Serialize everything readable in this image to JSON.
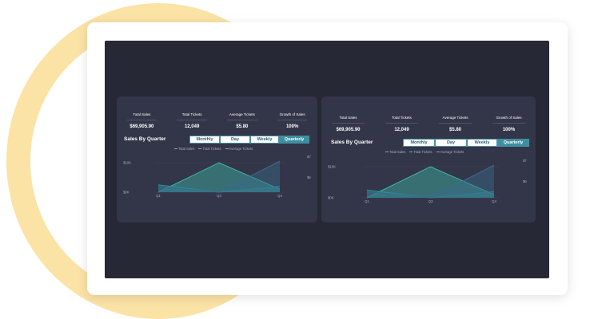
{
  "dashboards": [
    {
      "kpis": [
        {
          "label": "Total Sales",
          "value": "$69,905.90"
        },
        {
          "label": "Total Tickets",
          "value": "12,049"
        },
        {
          "label": "Average Tickets",
          "value": "$5.80"
        },
        {
          "label": "Growth of Sales",
          "value": "100%"
        }
      ],
      "chart_title": "Sales By Quarter",
      "tabs": [
        "Monthly",
        "Day",
        "Weekly",
        "Quarterly"
      ],
      "active_tab": "Quarterly",
      "legend": [
        "Total Sales",
        "Total Tickets",
        "Average Tickets"
      ],
      "left_ticks": [
        "$10K",
        "$0K"
      ],
      "right_ticks": [
        "$7",
        "$6"
      ],
      "x_ticks": [
        "Q1",
        "Q3",
        "Q4"
      ]
    },
    {
      "kpis": [
        {
          "label": "Total Sales",
          "value": "$69,905.90"
        },
        {
          "label": "Total Tickets",
          "value": "12,049"
        },
        {
          "label": "Average Tickets",
          "value": "$5.80"
        },
        {
          "label": "Growth of Sales",
          "value": "100%"
        }
      ],
      "chart_title": "Sales By Quarter",
      "tabs": [
        "Monthly",
        "Day",
        "Weekly",
        "Quarterly"
      ],
      "active_tab": "Quarterly",
      "legend": [
        "Total Sales",
        "Total Tickets",
        "Average Tickets"
      ],
      "left_ticks": [
        "$10K",
        "$0K"
      ],
      "right_ticks": [
        "$7",
        "$6"
      ],
      "x_ticks": [
        "Q1",
        "Q3",
        "Q4"
      ]
    }
  ],
  "chart_data": [
    {
      "type": "area",
      "title": "Sales By Quarter",
      "categories": [
        "Q1",
        "Q3",
        "Q4"
      ],
      "series": [
        {
          "name": "Total Sales",
          "axis": "left",
          "values": [
            0,
            10000,
            1000
          ],
          "color": "#3fb6a8"
        },
        {
          "name": "Total Tickets",
          "axis": "left",
          "values": [
            2500,
            0,
            2000
          ],
          "color": "#2e8f95"
        },
        {
          "name": "Average Tickets",
          "axis": "right",
          "values": [
            5.8,
            5.5,
            7.1
          ],
          "color": "#3a6a8c"
        }
      ],
      "ylim_left": [
        0,
        10000
      ],
      "ylim_right": [
        5.5,
        7.0
      ]
    },
    {
      "type": "area",
      "title": "Sales By Quarter",
      "categories": [
        "Q1",
        "Q3",
        "Q4"
      ],
      "series": [
        {
          "name": "Total Sales",
          "axis": "left",
          "values": [
            0,
            10000,
            1000
          ],
          "color": "#3fb6a8"
        },
        {
          "name": "Total Tickets",
          "axis": "left",
          "values": [
            2500,
            0,
            2000
          ],
          "color": "#2e8f95"
        },
        {
          "name": "Average Tickets",
          "axis": "right",
          "values": [
            5.8,
            5.5,
            7.1
          ],
          "color": "#3a6a8c"
        }
      ],
      "ylim_left": [
        0,
        10000
      ],
      "ylim_right": [
        5.5,
        7.0
      ]
    }
  ]
}
